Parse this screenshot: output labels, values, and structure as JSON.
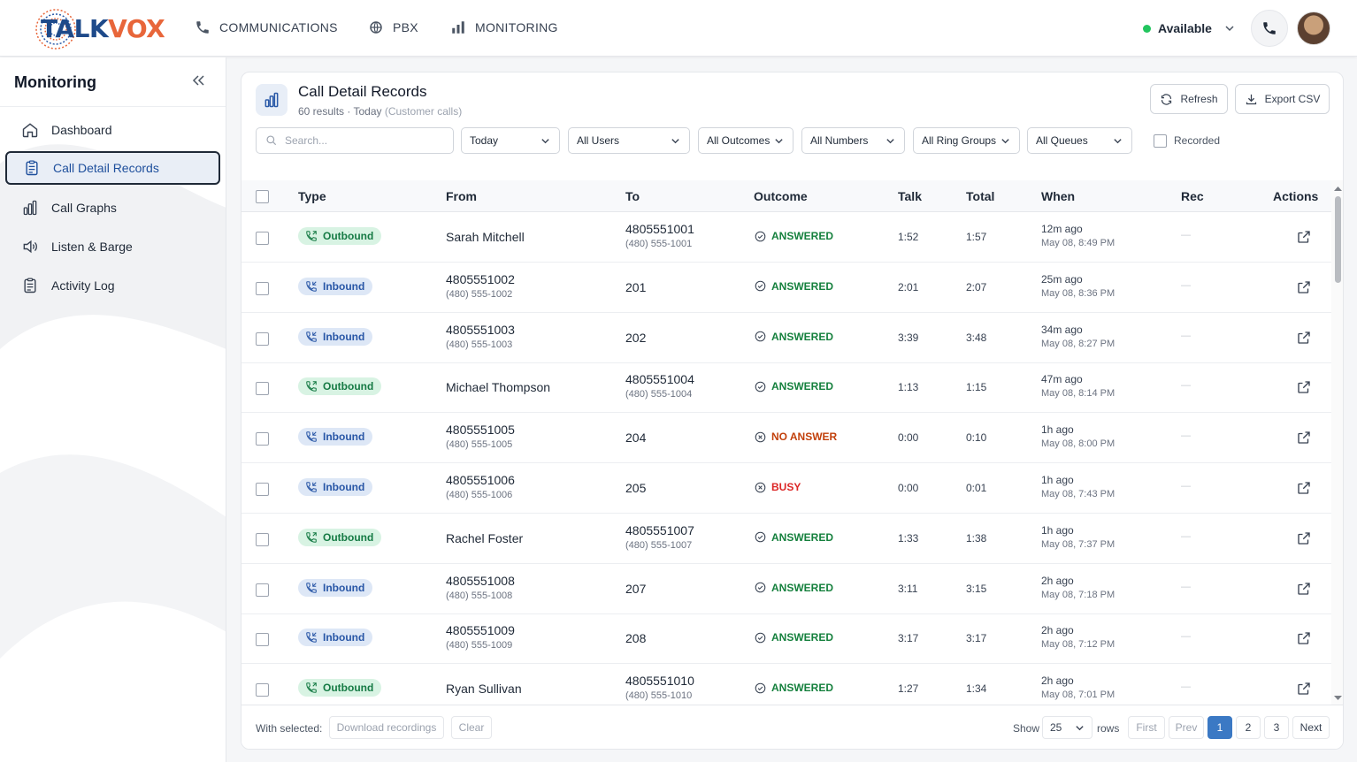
{
  "app": {
    "brand_part1": "TALK",
    "brand_part2": "VOX"
  },
  "topnav": [
    {
      "label": "COMMUNICATIONS",
      "icon": "phone-icon"
    },
    {
      "label": "PBX",
      "icon": "globe-icon"
    },
    {
      "label": "MONITORING",
      "icon": "bar-chart-icon"
    }
  ],
  "status": {
    "label": "Available",
    "color": "#22c55e"
  },
  "sidebar": {
    "title": "Monitoring",
    "items": [
      {
        "label": "Dashboard",
        "icon": "home-icon"
      },
      {
        "label": "Call Detail Records",
        "icon": "clipboard-icon",
        "active": true
      },
      {
        "label": "Call Graphs",
        "icon": "bar-chart-icon"
      },
      {
        "label": "Listen & Barge",
        "icon": "speaker-icon"
      },
      {
        "label": "Activity Log",
        "icon": "clipboard-icon"
      }
    ]
  },
  "page": {
    "title": "Call Detail Records",
    "subtitle": "60 results · Today",
    "subtitle_note": "(Customer calls)",
    "refresh_label": "Refresh",
    "export_label": "Export CSV"
  },
  "filters": {
    "search_placeholder": "Search...",
    "date": "Today",
    "users": "All Users",
    "outcomes": "All Outcomes",
    "numbers": "All Numbers",
    "ring_groups": "All Ring Groups",
    "queues": "All Queues",
    "recorded_label": "Recorded"
  },
  "columns": [
    "Type",
    "From",
    "To",
    "Outcome",
    "Talk",
    "Total",
    "When",
    "Rec",
    "Actions"
  ],
  "rows": [
    {
      "type": "Outbound",
      "from": "Sarah Mitchell",
      "from_sub": "",
      "to": "4805551001",
      "to_sub": "(480) 555-1001",
      "outcome": "ANSWERED",
      "talk": "1:52",
      "total": "1:57",
      "when": "12m ago",
      "when_sub": "May 08, 8:49 PM",
      "rec": "—"
    },
    {
      "type": "Inbound",
      "from": "4805551002",
      "from_sub": "(480) 555-1002",
      "to": "201",
      "to_sub": "",
      "outcome": "ANSWERED",
      "talk": "2:01",
      "total": "2:07",
      "when": "25m ago",
      "when_sub": "May 08, 8:36 PM",
      "rec": "—"
    },
    {
      "type": "Inbound",
      "from": "4805551003",
      "from_sub": "(480) 555-1003",
      "to": "202",
      "to_sub": "",
      "outcome": "ANSWERED",
      "talk": "3:39",
      "total": "3:48",
      "when": "34m ago",
      "when_sub": "May 08, 8:27 PM",
      "rec": "—"
    },
    {
      "type": "Outbound",
      "from": "Michael Thompson",
      "from_sub": "",
      "to": "4805551004",
      "to_sub": "(480) 555-1004",
      "outcome": "ANSWERED",
      "talk": "1:13",
      "total": "1:15",
      "when": "47m ago",
      "when_sub": "May 08, 8:14 PM",
      "rec": "—"
    },
    {
      "type": "Inbound",
      "from": "4805551005",
      "from_sub": "(480) 555-1005",
      "to": "204",
      "to_sub": "",
      "outcome": "NO ANSWER",
      "talk": "0:00",
      "total": "0:10",
      "when": "1h ago",
      "when_sub": "May 08, 8:00 PM",
      "rec": "—"
    },
    {
      "type": "Inbound",
      "from": "4805551006",
      "from_sub": "(480) 555-1006",
      "to": "205",
      "to_sub": "",
      "outcome": "BUSY",
      "talk": "0:00",
      "total": "0:01",
      "when": "1h ago",
      "when_sub": "May 08, 7:43 PM",
      "rec": "—"
    },
    {
      "type": "Outbound",
      "from": "Rachel Foster",
      "from_sub": "",
      "to": "4805551007",
      "to_sub": "(480) 555-1007",
      "outcome": "ANSWERED",
      "talk": "1:33",
      "total": "1:38",
      "when": "1h ago",
      "when_sub": "May 08, 7:37 PM",
      "rec": "—"
    },
    {
      "type": "Inbound",
      "from": "4805551008",
      "from_sub": "(480) 555-1008",
      "to": "207",
      "to_sub": "",
      "outcome": "ANSWERED",
      "talk": "3:11",
      "total": "3:15",
      "when": "2h ago",
      "when_sub": "May 08, 7:18 PM",
      "rec": "—"
    },
    {
      "type": "Inbound",
      "from": "4805551009",
      "from_sub": "(480) 555-1009",
      "to": "208",
      "to_sub": "",
      "outcome": "ANSWERED",
      "talk": "3:17",
      "total": "3:17",
      "when": "2h ago",
      "when_sub": "May 08, 7:12 PM",
      "rec": "—"
    },
    {
      "type": "Outbound",
      "from": "Ryan Sullivan",
      "from_sub": "",
      "to": "4805551010",
      "to_sub": "(480) 555-1010",
      "outcome": "ANSWERED",
      "talk": "1:27",
      "total": "1:34",
      "when": "2h ago",
      "when_sub": "May 08, 7:01 PM",
      "rec": "—"
    }
  ],
  "outcome_colors": {
    "ANSWERED": "#15803d",
    "NO ANSWER": "#c2410c",
    "BUSY": "#dc2626"
  },
  "footer": {
    "with_selected": "With selected:",
    "download_label": "Download recordings",
    "clear_label": "Clear",
    "show_label": "Show",
    "page_size": "25",
    "rows_label": "rows",
    "first_label": "First",
    "prev_label": "Prev",
    "pages": [
      "1",
      "2",
      "3"
    ],
    "current_page": "1",
    "next_label": "Next"
  }
}
